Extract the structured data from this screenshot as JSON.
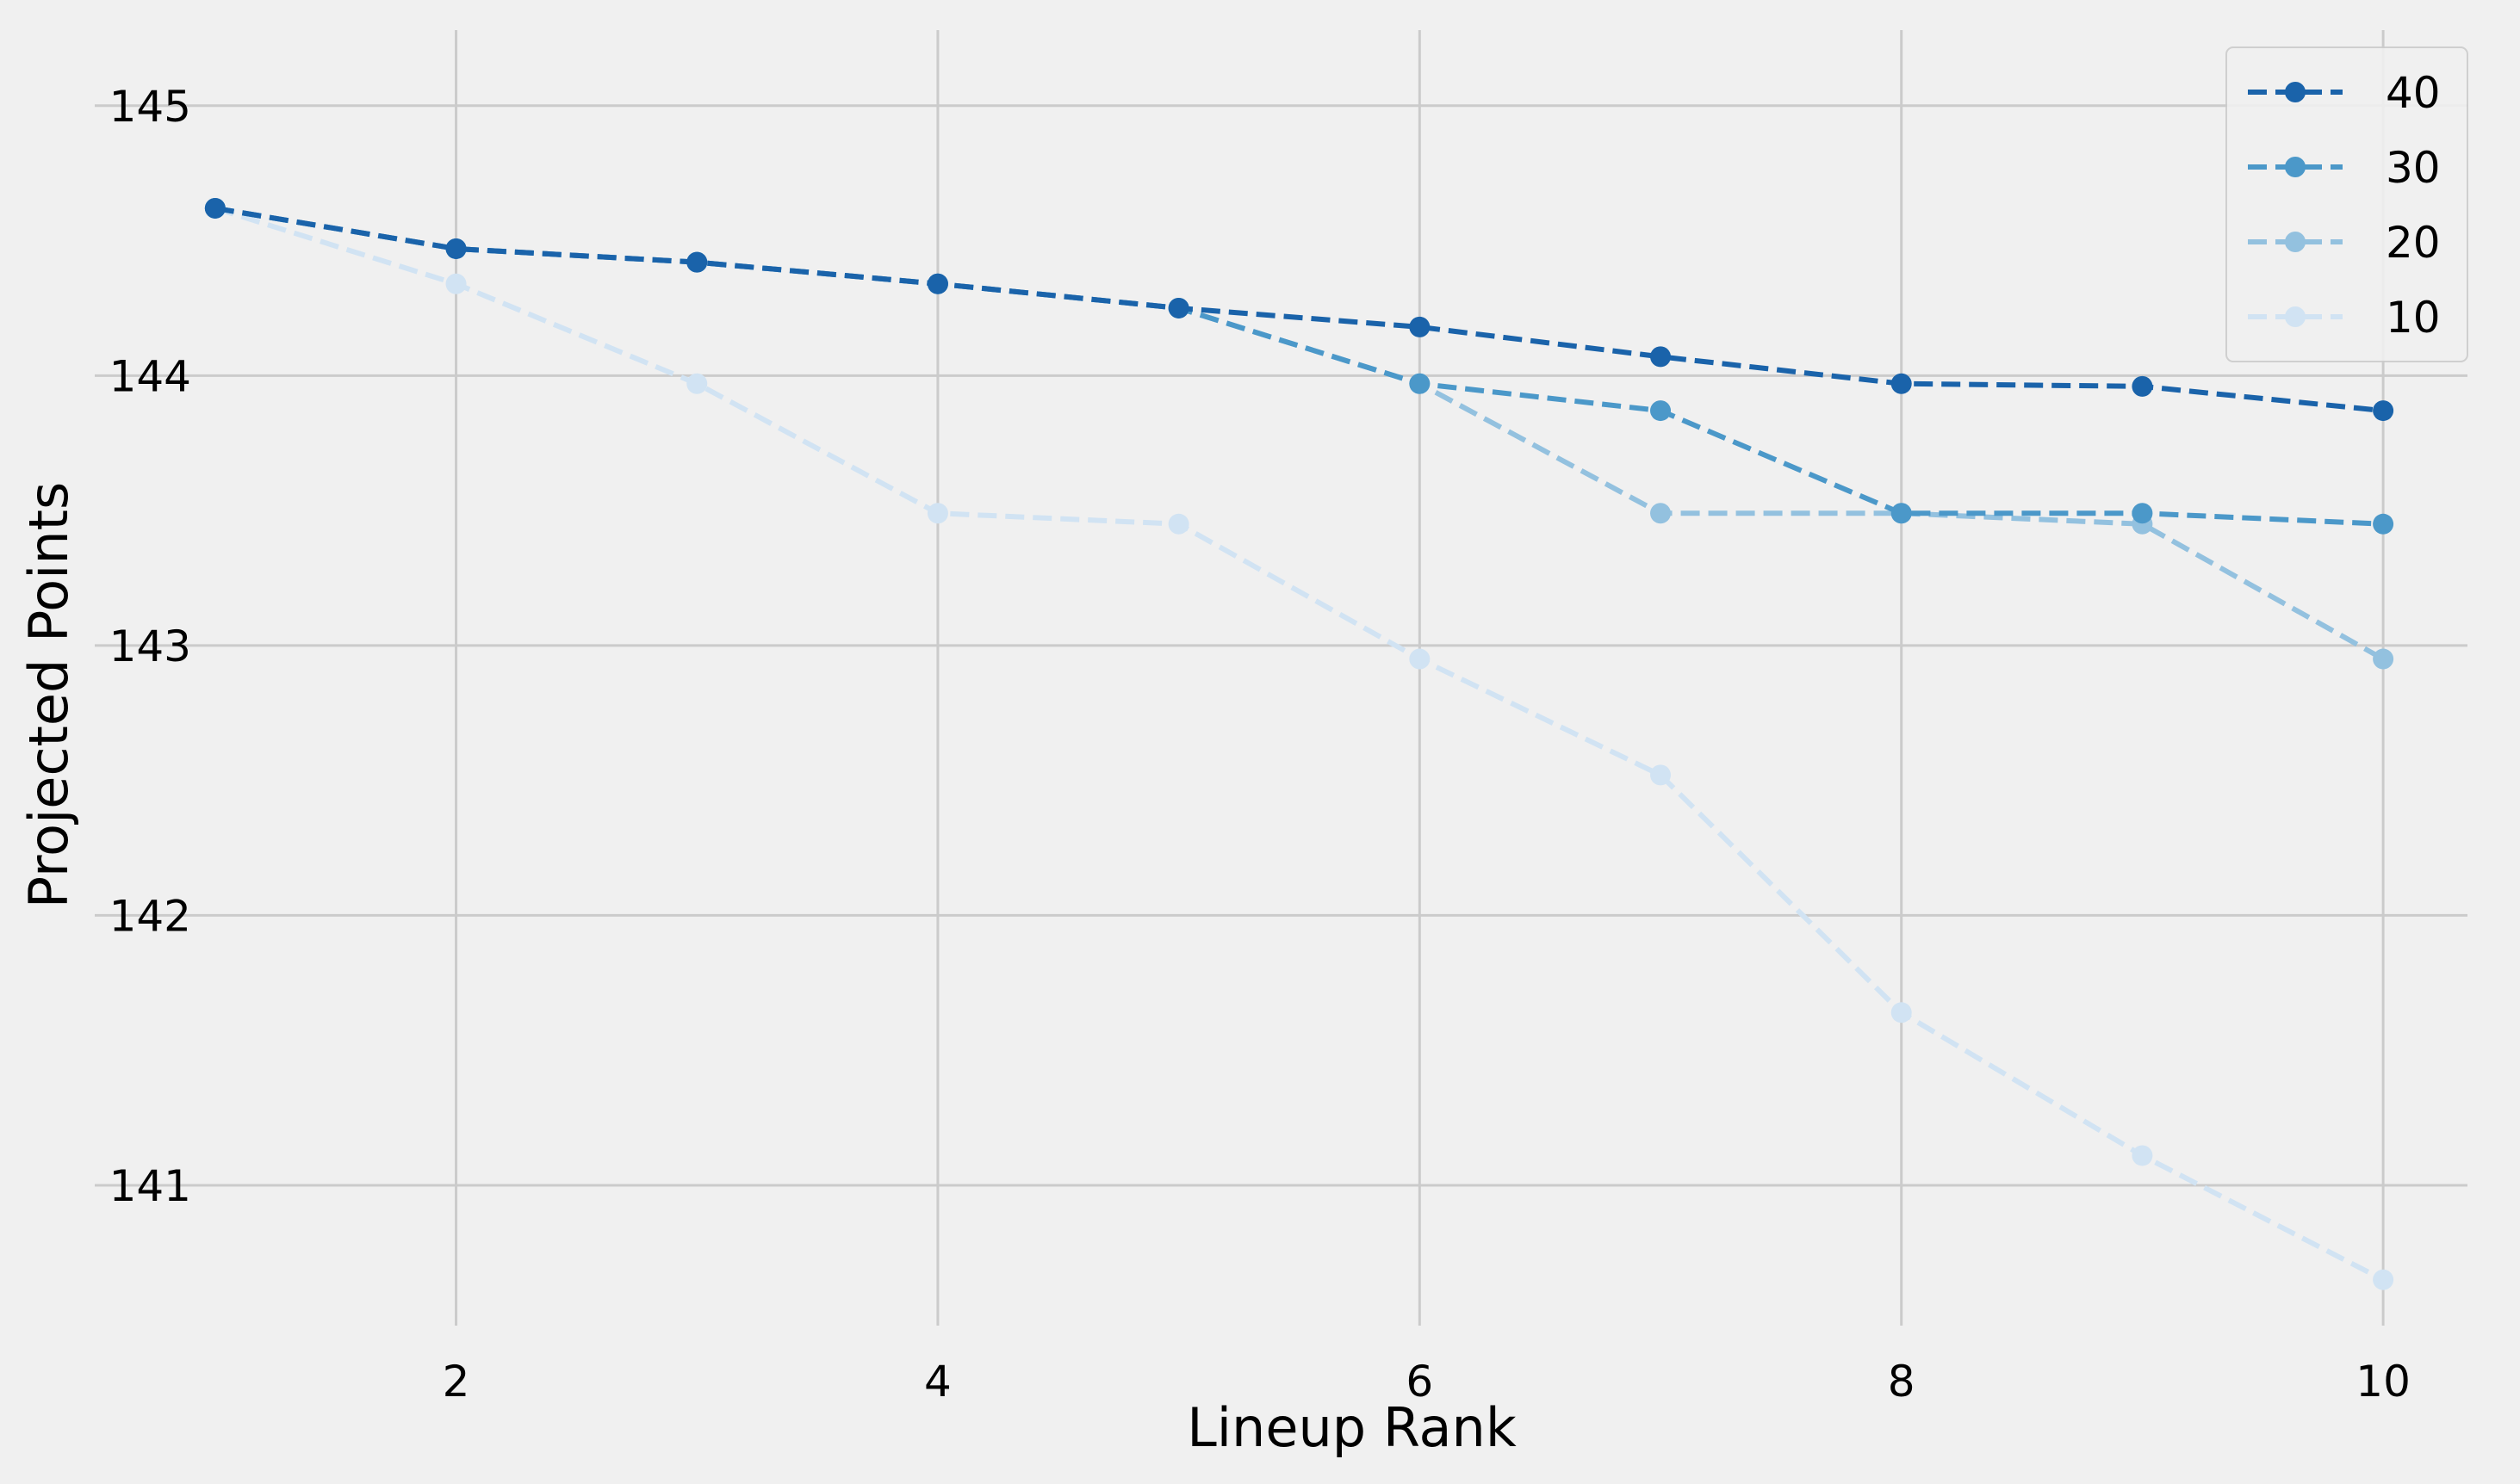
{
  "chart_data": {
    "type": "line",
    "title": "",
    "xlabel": "Lineup Rank",
    "ylabel": "Projected Points",
    "x": [
      1,
      2,
      3,
      4,
      5,
      6,
      7,
      8,
      9,
      10
    ],
    "xlim": [
      0.5,
      10.35
    ],
    "ylim": [
      140.48,
      145.28
    ],
    "xticks": [
      2,
      4,
      6,
      8,
      10
    ],
    "yticks": [
      141,
      142,
      143,
      144,
      145
    ],
    "grid": true,
    "legend_position": "top-right",
    "line_style": "dashed",
    "marker": "circle",
    "series": [
      {
        "name": "40",
        "color": "#1a63aa",
        "values": [
          144.62,
          144.47,
          144.42,
          144.34,
          144.25,
          144.18,
          144.07,
          143.97,
          143.96,
          143.87
        ]
      },
      {
        "name": "30",
        "color": "#4b98c9",
        "values": [
          144.62,
          144.47,
          144.42,
          144.34,
          144.25,
          143.97,
          143.87,
          143.49,
          143.49,
          143.45
        ]
      },
      {
        "name": "20",
        "color": "#93c1df",
        "values": [
          144.62,
          144.47,
          144.42,
          144.34,
          144.25,
          143.97,
          143.49,
          143.49,
          143.45,
          142.95
        ]
      },
      {
        "name": "10",
        "color": "#d1e3f3",
        "values": [
          144.62,
          144.34,
          143.97,
          143.49,
          143.45,
          142.95,
          142.52,
          141.64,
          141.11,
          140.65
        ]
      }
    ]
  }
}
